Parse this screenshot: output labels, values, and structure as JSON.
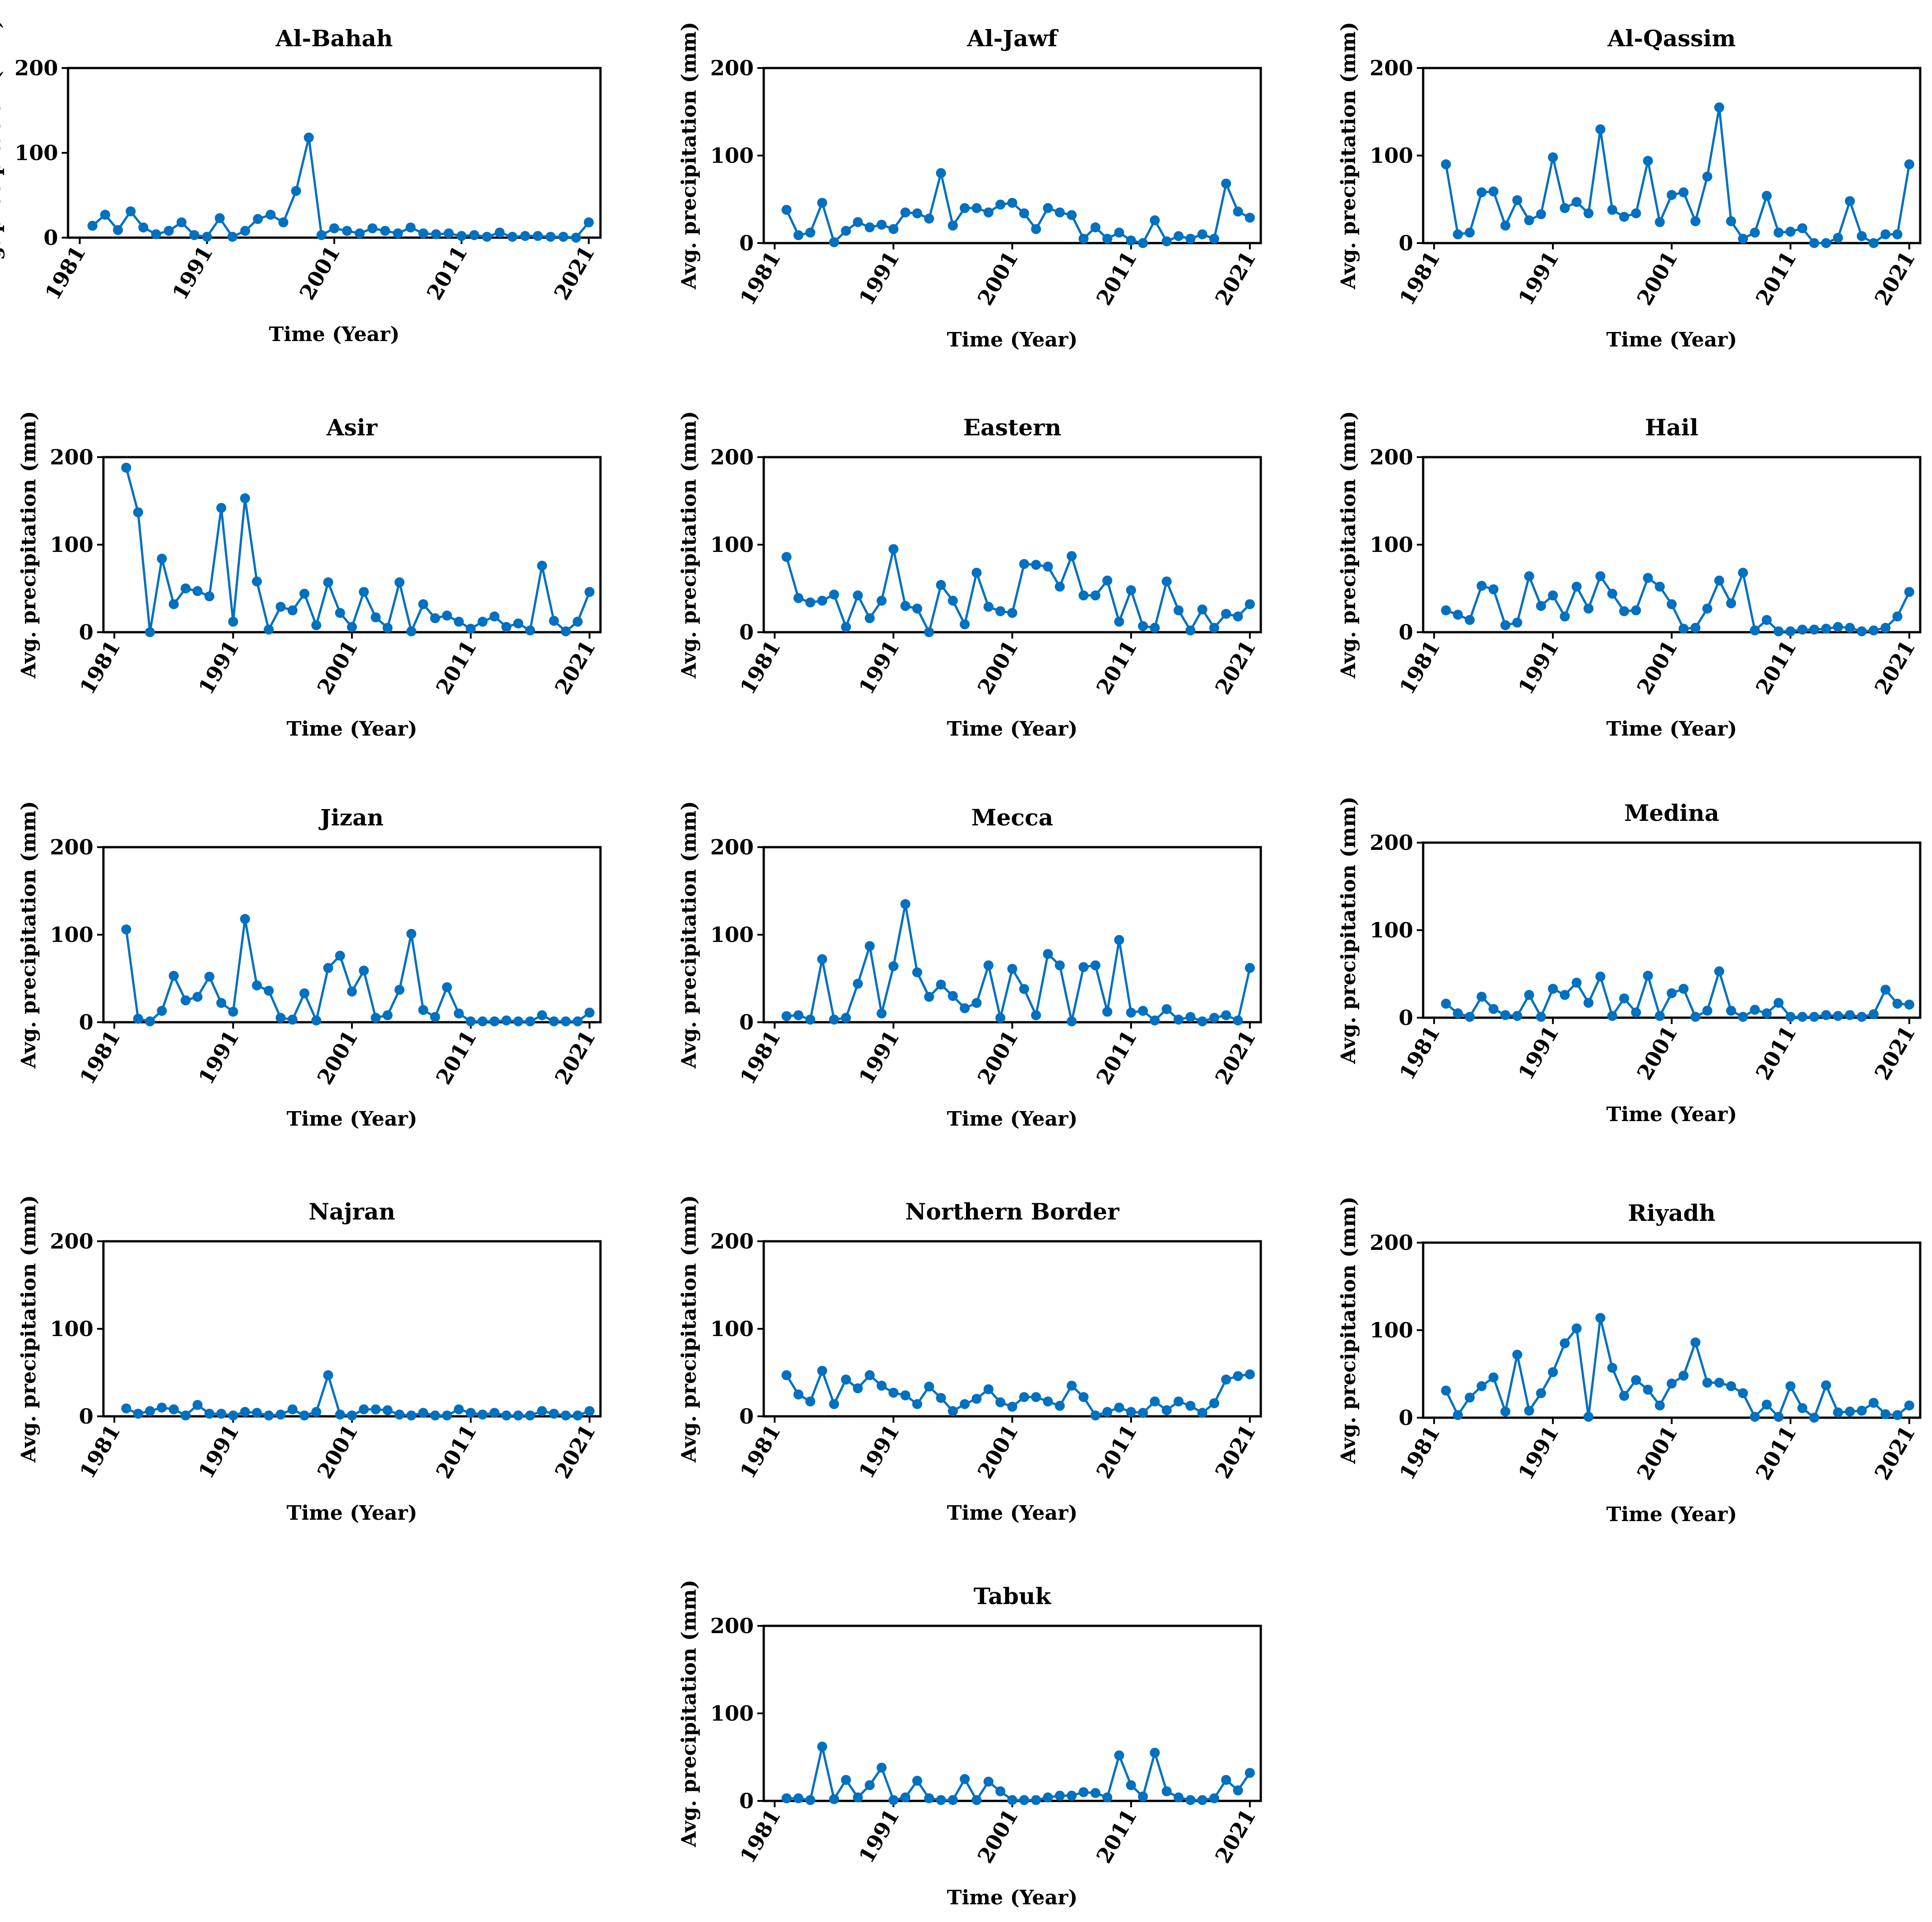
{
  "figure": {
    "style": {
      "line_color": "#0070C0",
      "marker_color": "#0070C0",
      "axis_color": "#000000"
    }
  },
  "chart_data": [
    {
      "type": "line",
      "title": "Al-Bahah",
      "xlabel": "Time (Year)",
      "ylabel": "Avg. precipitation (mm)",
      "xlim": [
        1981,
        2021
      ],
      "ylim": [
        0,
        200
      ],
      "xticks": [
        1981,
        1991,
        2001,
        2011,
        2021
      ],
      "yticks": [
        0,
        100,
        200
      ],
      "grid": false,
      "legend": "none",
      "series": [
        {
          "x_start": 1982,
          "values": [
            14,
            27,
            9,
            31,
            12,
            4,
            8,
            18,
            3,
            1,
            23,
            1,
            8,
            22,
            27,
            18,
            55,
            118,
            3,
            11,
            8,
            5,
            11,
            8,
            5,
            12,
            5,
            4,
            5,
            2,
            3,
            1,
            6,
            1,
            2,
            2,
            1,
            1,
            0,
            18
          ]
        }
      ]
    },
    {
      "type": "line",
      "title": "Al-Jawf",
      "xlabel": "Time (Year)",
      "ylabel": "Avg. precipitation (mm)",
      "xlim": [
        1981,
        2021
      ],
      "ylim": [
        0,
        200
      ],
      "xticks": [
        1981,
        1991,
        2001,
        2011,
        2021
      ],
      "yticks": [
        0,
        100,
        200
      ],
      "grid": false,
      "legend": "none",
      "series": [
        {
          "x_start": 1982,
          "values": [
            38,
            9,
            12,
            46,
            1,
            14,
            24,
            18,
            21,
            16,
            35,
            34,
            28,
            80,
            20,
            40,
            40,
            35,
            44,
            46,
            34,
            16,
            40,
            35,
            32,
            5,
            18,
            5,
            12,
            3,
            0,
            26,
            2,
            8,
            5,
            10,
            5,
            68,
            36,
            29
          ]
        }
      ]
    },
    {
      "type": "line",
      "title": "Al-Qassim",
      "xlabel": "Time (Year)",
      "ylabel": "Avg. precipitation (mm)",
      "xlim": [
        1981,
        2021
      ],
      "ylim": [
        0,
        200
      ],
      "xticks": [
        1981,
        1991,
        2001,
        2011,
        2021
      ],
      "yticks": [
        0,
        100,
        200
      ],
      "grid": false,
      "legend": "none",
      "series": [
        {
          "x_start": 1982,
          "values": [
            90,
            10,
            12,
            58,
            59,
            20,
            49,
            26,
            33,
            98,
            40,
            47,
            34,
            130,
            38,
            30,
            34,
            94,
            24,
            55,
            58,
            25,
            76,
            155,
            25,
            5,
            12,
            54,
            12,
            13,
            17,
            0,
            0,
            6,
            48,
            8,
            0,
            10,
            10,
            90
          ]
        }
      ]
    },
    {
      "type": "line",
      "title": "Asir",
      "xlabel": "Time (Year)",
      "ylabel": "Avg. precipitation (mm)",
      "xlim": [
        1981,
        2021
      ],
      "ylim": [
        0,
        200
      ],
      "xticks": [
        1981,
        1991,
        2001,
        2011,
        2021
      ],
      "yticks": [
        0,
        100,
        200
      ],
      "grid": false,
      "legend": "none",
      "series": [
        {
          "x_start": 1982,
          "values": [
            188,
            137,
            0,
            84,
            32,
            50,
            47,
            41,
            142,
            12,
            153,
            58,
            3,
            29,
            25,
            44,
            8,
            57,
            22,
            6,
            46,
            17,
            5,
            57,
            1,
            32,
            16,
            19,
            12,
            4,
            12,
            18,
            6,
            10,
            2,
            76,
            13,
            1,
            12,
            46
          ]
        }
      ]
    },
    {
      "type": "line",
      "title": "Eastern",
      "xlabel": "Time (Year)",
      "ylabel": "Avg. precipitation (mm)",
      "xlim": [
        1981,
        2021
      ],
      "ylim": [
        0,
        200
      ],
      "xticks": [
        1981,
        1991,
        2001,
        2011,
        2021
      ],
      "yticks": [
        0,
        100,
        200
      ],
      "grid": false,
      "legend": "none",
      "series": [
        {
          "x_start": 1982,
          "values": [
            86,
            39,
            34,
            36,
            43,
            6,
            42,
            16,
            36,
            95,
            30,
            27,
            0,
            54,
            36,
            9,
            68,
            29,
            24,
            22,
            78,
            77,
            75,
            52,
            87,
            42,
            42,
            59,
            12,
            48,
            7,
            5,
            58,
            25,
            2,
            26,
            5,
            21,
            18,
            32
          ]
        }
      ]
    },
    {
      "type": "line",
      "title": "Hail",
      "xlabel": "Time (Year)",
      "ylabel": "Avg. precipitation (mm)",
      "xlim": [
        1981,
        2021
      ],
      "ylim": [
        0,
        200
      ],
      "xticks": [
        1981,
        1991,
        2001,
        2011,
        2021
      ],
      "yticks": [
        0,
        100,
        200
      ],
      "grid": false,
      "legend": "none",
      "series": [
        {
          "x_start": 1982,
          "values": [
            25,
            20,
            14,
            53,
            49,
            8,
            11,
            64,
            30,
            42,
            18,
            52,
            27,
            64,
            44,
            24,
            25,
            62,
            52,
            32,
            4,
            5,
            27,
            59,
            33,
            68,
            2,
            14,
            1,
            1,
            3,
            3,
            4,
            6,
            5,
            1,
            2,
            5,
            18,
            46
          ]
        }
      ]
    },
    {
      "type": "line",
      "title": "Jizan",
      "xlabel": "Time (Year)",
      "ylabel": "Avg. precipitation (mm)",
      "xlim": [
        1981,
        2021
      ],
      "ylim": [
        0,
        200
      ],
      "xticks": [
        1981,
        1991,
        2001,
        2011,
        2021
      ],
      "yticks": [
        0,
        100,
        200
      ],
      "grid": false,
      "legend": "none",
      "series": [
        {
          "x_start": 1982,
          "values": [
            106,
            4,
            1,
            13,
            53,
            25,
            29,
            52,
            22,
            12,
            118,
            42,
            36,
            5,
            3,
            33,
            2,
            62,
            76,
            35,
            59,
            5,
            8,
            37,
            101,
            14,
            6,
            40,
            10,
            1,
            1,
            1,
            2,
            1,
            1,
            8,
            1,
            1,
            1,
            11
          ]
        }
      ]
    },
    {
      "type": "line",
      "title": "Mecca",
      "xlabel": "Time (Year)",
      "ylabel": "Avg. precipitation (mm)",
      "xlim": [
        1981,
        2021
      ],
      "ylim": [
        0,
        200
      ],
      "xticks": [
        1981,
        1991,
        2001,
        2011,
        2021
      ],
      "yticks": [
        0,
        100,
        200
      ],
      "grid": false,
      "legend": "none",
      "series": [
        {
          "x_start": 1982,
          "values": [
            7,
            8,
            3,
            72,
            3,
            5,
            44,
            87,
            10,
            64,
            135,
            57,
            29,
            43,
            30,
            16,
            22,
            65,
            5,
            61,
            38,
            8,
            78,
            65,
            1,
            63,
            65,
            12,
            94,
            11,
            13,
            2,
            15,
            3,
            6,
            1,
            5,
            8,
            2,
            62
          ]
        }
      ]
    },
    {
      "type": "line",
      "title": "Medina",
      "xlabel": "Time (Year)",
      "ylabel": "Avg. precipitation (mm)",
      "xlim": [
        1981,
        2021
      ],
      "ylim": [
        0,
        200
      ],
      "xticks": [
        1981,
        1991,
        2001,
        2011,
        2021
      ],
      "yticks": [
        0,
        100,
        200
      ],
      "grid": false,
      "legend": "none",
      "series": [
        {
          "x_start": 1982,
          "values": [
            16,
            5,
            1,
            24,
            10,
            3,
            2,
            26,
            1,
            33,
            26,
            40,
            17,
            47,
            2,
            22,
            6,
            48,
            2,
            28,
            33,
            1,
            8,
            53,
            8,
            1,
            9,
            5,
            17,
            1,
            1,
            1,
            3,
            2,
            3,
            1,
            4,
            32,
            16,
            15
          ]
        }
      ]
    },
    {
      "type": "line",
      "title": "Najran",
      "xlabel": "Time (Year)",
      "ylabel": "Avg. precipitation (mm)",
      "xlim": [
        1981,
        2021
      ],
      "ylim": [
        0,
        200
      ],
      "xticks": [
        1981,
        1991,
        2001,
        2011,
        2021
      ],
      "yticks": [
        0,
        100,
        200
      ],
      "grid": false,
      "legend": "none",
      "series": [
        {
          "x_start": 1982,
          "values": [
            9,
            3,
            6,
            10,
            8,
            1,
            13,
            3,
            3,
            1,
            5,
            4,
            1,
            2,
            8,
            1,
            5,
            47,
            2,
            1,
            8,
            8,
            7,
            2,
            1,
            4,
            1,
            1,
            8,
            4,
            2,
            4,
            1,
            1,
            1,
            6,
            3,
            1,
            1,
            6
          ]
        }
      ]
    },
    {
      "type": "line",
      "title": "Northern Border",
      "xlabel": "Time (Year)",
      "ylabel": "Avg. precipitation (mm)",
      "xlim": [
        1981,
        2021
      ],
      "ylim": [
        0,
        200
      ],
      "xticks": [
        1981,
        1991,
        2001,
        2011,
        2021
      ],
      "yticks": [
        0,
        100,
        200
      ],
      "grid": false,
      "legend": "none",
      "series": [
        {
          "x_start": 1982,
          "values": [
            47,
            25,
            17,
            52,
            14,
            42,
            32,
            47,
            35,
            27,
            24,
            14,
            34,
            21,
            6,
            14,
            20,
            31,
            16,
            11,
            22,
            22,
            17,
            12,
            35,
            22,
            1,
            5,
            10,
            5,
            4,
            17,
            7,
            17,
            12,
            4,
            15,
            42,
            46,
            48
          ]
        }
      ]
    },
    {
      "type": "line",
      "title": "Riyadh",
      "xlabel": "Time (Year)",
      "ylabel": "Avg. precipitation (mm)",
      "xlim": [
        1981,
        2021
      ],
      "ylim": [
        0,
        200
      ],
      "xticks": [
        1981,
        1991,
        2001,
        2011,
        2021
      ],
      "yticks": [
        0,
        100,
        200
      ],
      "grid": false,
      "legend": "none",
      "series": [
        {
          "x_start": 1982,
          "values": [
            31,
            3,
            23,
            36,
            46,
            7,
            72,
            8,
            28,
            52,
            85,
            102,
            1,
            114,
            57,
            25,
            43,
            32,
            14,
            39,
            48,
            86,
            40,
            40,
            36,
            28,
            1,
            15,
            1,
            36,
            11,
            0,
            37,
            6,
            7,
            8,
            17,
            4,
            3,
            14
          ]
        }
      ]
    },
    {
      "type": "line",
      "title": "Tabuk",
      "xlabel": "Time (Year)",
      "ylabel": "Avg. precipitation (mm)",
      "xlim": [
        1981,
        2021
      ],
      "ylim": [
        0,
        200
      ],
      "xticks": [
        1981,
        1991,
        2001,
        2011,
        2021
      ],
      "yticks": [
        0,
        100,
        200
      ],
      "grid": false,
      "legend": "none",
      "series": [
        {
          "x_start": 1982,
          "values": [
            3,
            3,
            1,
            62,
            2,
            24,
            4,
            18,
            38,
            1,
            4,
            23,
            3,
            1,
            1,
            25,
            1,
            22,
            11,
            1,
            1,
            1,
            4,
            6,
            6,
            10,
            9,
            4,
            52,
            18,
            5,
            55,
            11,
            4,
            1,
            1,
            3,
            24,
            12,
            32
          ]
        }
      ]
    }
  ]
}
